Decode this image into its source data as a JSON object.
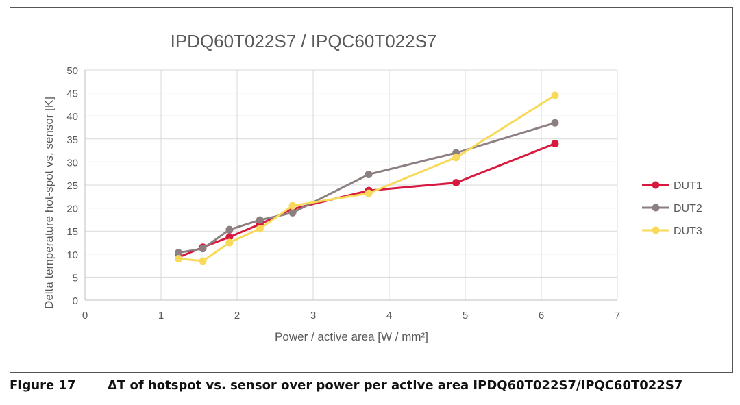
{
  "chart_data": {
    "type": "line",
    "title": "IPDQ60T022S7 / IPQC60T022S7",
    "xlabel": "Power / active area [W / mm²]",
    "ylabel": "Delta temperature hot-spot vs. sensor [K]",
    "xlim": [
      0,
      7
    ],
    "ylim": [
      0,
      50
    ],
    "x_ticks": [
      0,
      1,
      2,
      3,
      4,
      5,
      6,
      7
    ],
    "y_ticks": [
      0,
      5,
      10,
      15,
      20,
      25,
      30,
      35,
      40,
      45,
      50
    ],
    "grid": true,
    "legend_position": "right",
    "series": [
      {
        "name": "DUT1",
        "color": "#d7193f",
        "x": [
          1.23,
          1.55,
          1.9,
          2.3,
          2.73,
          3.73,
          4.88,
          6.18
        ],
        "y": [
          9.3,
          11.5,
          13.7,
          16.5,
          19.8,
          23.8,
          25.5,
          34.0
        ]
      },
      {
        "name": "DUT2",
        "color": "#8c7f80",
        "x": [
          1.23,
          1.55,
          1.9,
          2.3,
          2.73,
          3.73,
          4.88,
          6.18
        ],
        "y": [
          10.3,
          11.2,
          15.3,
          17.4,
          19.0,
          27.3,
          32.0,
          38.5
        ]
      },
      {
        "name": "DUT3",
        "color": "#f8d959",
        "x": [
          1.23,
          1.55,
          1.9,
          2.3,
          2.73,
          3.73,
          4.88,
          6.18
        ],
        "y": [
          9.0,
          8.5,
          12.5,
          15.5,
          20.5,
          23.2,
          31.0,
          44.5
        ]
      }
    ]
  },
  "caption": {
    "figure_label": "Figure 17",
    "text": "ΔT of hotspot vs. sensor over power per active area IPDQ60T022S7/IPQC60T022S7"
  }
}
